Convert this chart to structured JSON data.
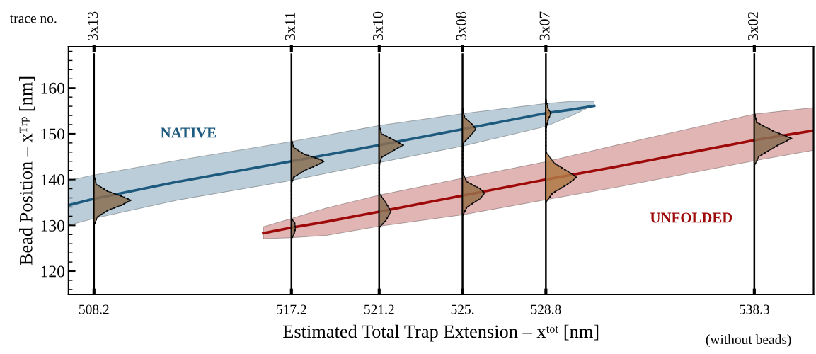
{
  "chart_data": {
    "type": "line",
    "xlabel": "Estimated Total Trap Extension – xᵗᵒᵗ [nm]",
    "ylabel": "Bead Position – xᵀʳᵖ [nm]",
    "xlim": [
      507.04,
      541.0
    ],
    "ylim": [
      114.9,
      169.0
    ],
    "xticks": [
      508.2,
      517.2,
      521.2,
      {
        "value": 525.0,
        "label": "525."
      },
      528.8,
      538.3
    ],
    "yticks": [
      120,
      130,
      140,
      150,
      160
    ],
    "grid": false,
    "legend": false,
    "ref_lines": [
      {
        "axis": "x",
        "value": 508.2,
        "label": "3x13",
        "color": "#000000"
      },
      {
        "axis": "x",
        "value": 517.2,
        "label": "3x11",
        "color": "#000000"
      },
      {
        "axis": "x",
        "value": 521.2,
        "label": "3x10",
        "color": "#000000"
      },
      {
        "axis": "x",
        "value": 525.0,
        "label": "3x08",
        "color": "#000000"
      },
      {
        "axis": "x",
        "value": 528.8,
        "label": "3x07",
        "color": "#000000"
      },
      {
        "axis": "x",
        "value": 538.3,
        "label": "3x02",
        "color": "#000000"
      }
    ],
    "series": [
      {
        "type": "line",
        "name": "NATIVE",
        "color": "#1d5a7e",
        "x": [
          507.04,
          508.2,
          512.0,
          517.2,
          521.2,
          525.0,
          528.8,
          530.0,
          531.0
        ],
        "values": [
          134.4,
          135.8,
          139.5,
          144.0,
          147.5,
          151.0,
          154.5,
          155.3,
          156.1
        ],
        "upper": [
          139.8,
          141.0,
          144.2,
          148.3,
          151.8,
          154.4,
          156.6,
          157.1,
          157.1
        ],
        "lower": [
          130.0,
          131.5,
          135.5,
          139.8,
          143.7,
          147.3,
          151.6,
          154.0,
          156.3
        ]
      },
      {
        "type": "line",
        "name": "UNFOLDED",
        "color": "#9e0a0a",
        "x": [
          515.92,
          517.2,
          518.8,
          521.2,
          525.0,
          528.8,
          532.0,
          538.3,
          541.0
        ],
        "values": [
          128.3,
          129.5,
          130.8,
          133.0,
          136.5,
          140.0,
          142.8,
          148.6,
          150.7
        ],
        "upper": [
          129.7,
          131.5,
          133.8,
          136.6,
          140.3,
          143.9,
          147.5,
          154.3,
          155.7
        ],
        "lower": [
          127.1,
          127.3,
          127.8,
          129.8,
          132.3,
          135.6,
          138.3,
          144.1,
          146.4
        ]
      },
      {
        "type": "area",
        "color": "#8a6e52",
        "x": [
          508.2,
          508.3,
          508.8,
          509.5,
          509.88,
          509.5,
          508.8,
          508.35,
          508.2
        ],
        "values": [
          141,
          139,
          137.5,
          136.3,
          135.5,
          134.5,
          133.2,
          131.8,
          130
        ]
      },
      {
        "type": "area",
        "color": "#8a6e52",
        "x": [
          517.2,
          517.3,
          517.8,
          518.4,
          518.69,
          518.4,
          517.8,
          517.3,
          517.2,
          517.2,
          517.35,
          517.38,
          517.35,
          517.2
        ],
        "values": [
          149,
          147,
          145.5,
          144.6,
          144,
          143.2,
          142,
          140.5,
          139,
          131.5,
          130.5,
          129.5,
          128.5,
          127
        ]
      },
      {
        "type": "area",
        "color": "#8a6e52",
        "x": [
          521.2,
          521.3,
          521.8,
          522.3,
          521.8,
          521.3,
          521.2,
          521.2,
          521.5,
          521.73,
          521.5,
          521.2
        ],
        "values": [
          152,
          150,
          148.8,
          147.5,
          146.2,
          144.8,
          143,
          137,
          135,
          133,
          131,
          129.5
        ]
      },
      {
        "type": "area",
        "color": "#97704a",
        "x": [
          525.0,
          525.1,
          525.45,
          525.6,
          525.4,
          525.05,
          525.0,
          525.0,
          525.2,
          525.8,
          526.0,
          525.8,
          525.2,
          525.0
        ],
        "values": [
          155.5,
          153.5,
          152,
          151,
          149.8,
          148,
          146,
          141.5,
          139.5,
          138,
          137,
          135.8,
          134,
          132
        ]
      },
      {
        "type": "area",
        "color": "#b07a45",
        "x": [
          528.8,
          528.9,
          529.03,
          528.9,
          528.8,
          528.8,
          529.2,
          529.8,
          530.2,
          529.8,
          529.1,
          528.8
        ],
        "values": [
          157.5,
          155.5,
          154.5,
          153,
          151,
          146,
          143.5,
          141.8,
          140.5,
          139,
          137,
          135
        ]
      },
      {
        "type": "area",
        "color": "#8a6e52",
        "x": [
          538.3,
          538.4,
          539.2,
          540.0,
          539.3,
          538.5,
          538.3
        ],
        "values": [
          155,
          152.5,
          150.5,
          149,
          147.3,
          145,
          143
        ]
      }
    ],
    "annotations": [
      "trace no.",
      "(without beads)"
    ]
  }
}
